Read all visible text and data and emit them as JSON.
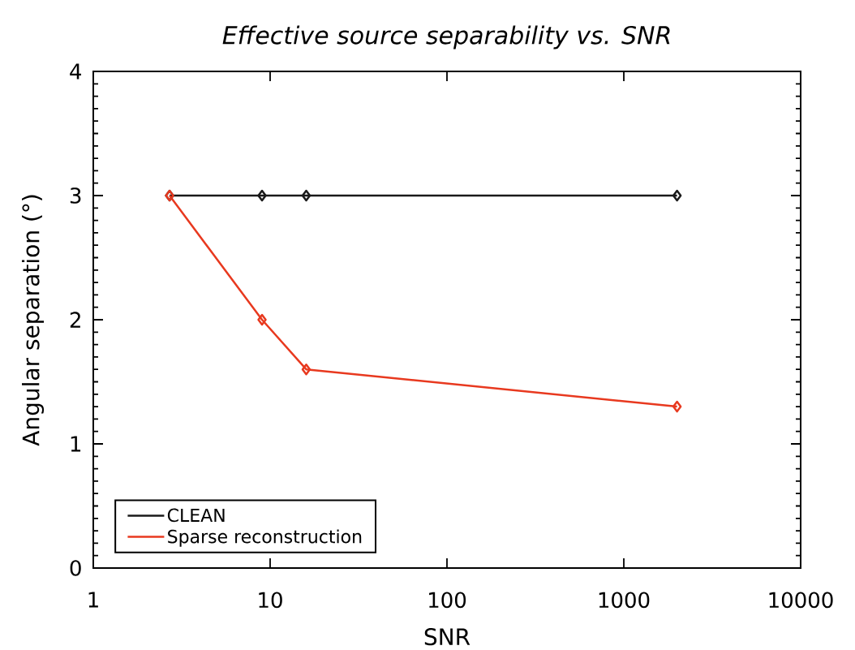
{
  "chart_data": {
    "type": "line",
    "title": "Effective source separability vs. SNR",
    "xlabel": "SNR",
    "ylabel": "Angular separation (°)",
    "log": "x",
    "xlim": [
      1,
      10000
    ],
    "xticks": [
      1,
      10,
      100,
      1000,
      10000
    ],
    "ylim": [
      0,
      4
    ],
    "yticks": [
      0,
      1,
      2,
      3,
      4
    ],
    "marker": "diamond",
    "legend": "bottom left",
    "grid": false,
    "series": [
      {
        "name": "CLEAN",
        "color": "#1a1a1a",
        "x": [
          2.7,
          9,
          16,
          2000
        ],
        "values": [
          3,
          3,
          3,
          3
        ]
      },
      {
        "name": "Sparse reconstruction",
        "color": "#e8391f",
        "x": [
          2.7,
          9,
          16,
          2000
        ],
        "values": [
          3,
          2,
          1.6,
          1.3
        ]
      }
    ]
  }
}
